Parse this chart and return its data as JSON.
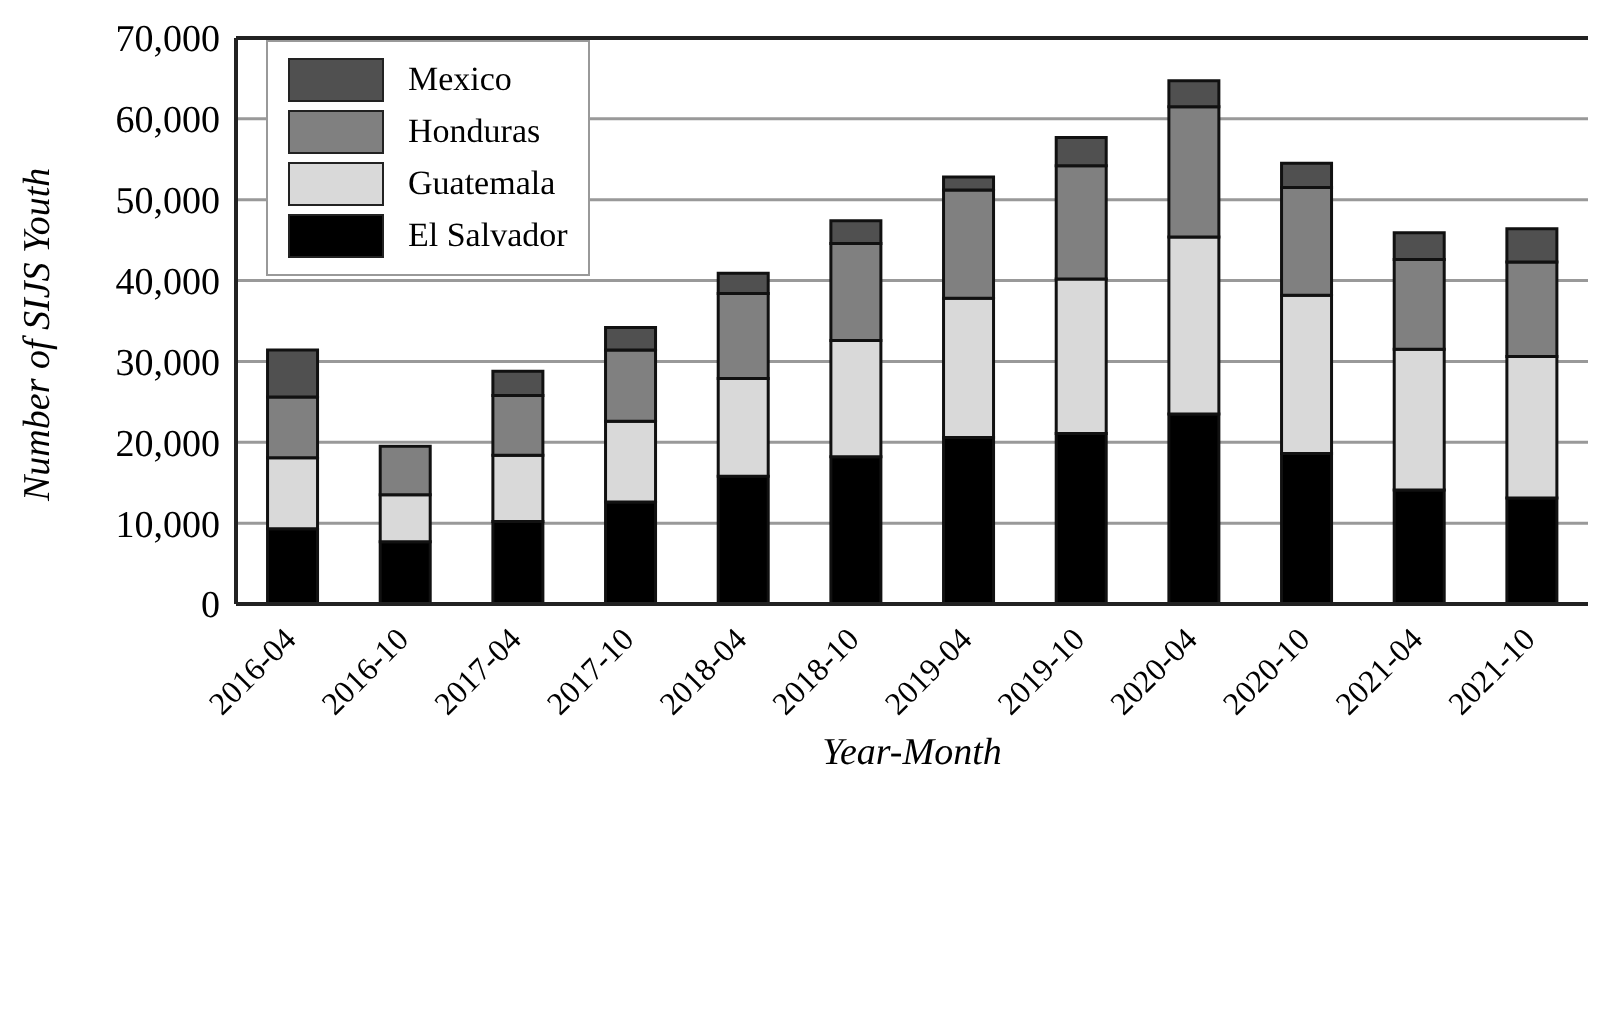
{
  "chart_data": {
    "type": "bar",
    "xlabel": "Year-Month",
    "ylabel": "Number of SIJS Youth",
    "categories": [
      "2016-04",
      "2016-10",
      "2017-04",
      "2017-10",
      "2018-04",
      "2018-10",
      "2019-04",
      "2019-10",
      "2020-04",
      "2020-10",
      "2021-04",
      "2021-10"
    ],
    "stacked": true,
    "series": [
      {
        "name": "El Salvador",
        "color": "#000000",
        "values": [
          9300,
          7700,
          10200,
          12600,
          15800,
          18200,
          20600,
          21100,
          23500,
          18600,
          14100,
          13100
        ]
      },
      {
        "name": "Guatemala",
        "color": "#d9d9d9",
        "values": [
          8800,
          5800,
          8200,
          10000,
          12100,
          14400,
          17200,
          19100,
          21900,
          19600,
          17400,
          17500
        ]
      },
      {
        "name": "Honduras",
        "color": "#808080",
        "values": [
          7500,
          6000,
          7400,
          8800,
          10500,
          12000,
          13400,
          14000,
          16100,
          13300,
          11100,
          11700
        ]
      },
      {
        "name": "Mexico",
        "color": "#505050",
        "values": [
          5800,
          0,
          3000,
          2800,
          2500,
          2800,
          1600,
          3500,
          3200,
          3000,
          3300,
          4100
        ]
      }
    ],
    "ylim": [
      0,
      70000
    ],
    "yticks": [
      0,
      {
        "value": 10000,
        "label": "10,000"
      },
      {
        "value": 20000,
        "label": "20,000"
      },
      {
        "value": 30000,
        "label": "30,000"
      },
      {
        "value": 40000,
        "label": "40,000"
      },
      {
        "value": 50000,
        "label": "50,000"
      },
      {
        "value": 60000,
        "label": "60,000"
      },
      {
        "value": 70000,
        "label": "70,000"
      }
    ],
    "grid": "y",
    "legend": "top left"
  }
}
